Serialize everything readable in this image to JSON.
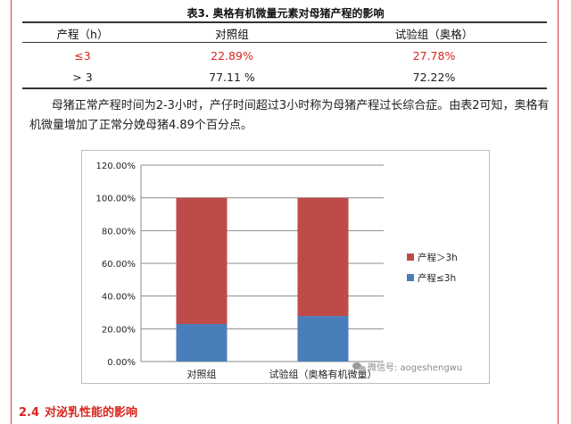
{
  "table": {
    "title": "表3. 奥格有机微量元素对母猪产程的影响",
    "headers": [
      "产程（h）",
      "对照组",
      "试验组（奥格）"
    ],
    "rows": [
      {
        "label": "≤3",
        "control": "22.89%",
        "test": "27.78%"
      },
      {
        "label": "> 3",
        "control": "77.11 %",
        "test": "72.22%"
      }
    ]
  },
  "paragraph": "母猪正常产程时间为2-3小时，产仔时间超过3小时称为母猪产程过长综合症。由表2可知，奥格有机微量增加了正常分娩母猪4.89个百分点。",
  "chart_data": {
    "type": "bar",
    "stacked": true,
    "categories": [
      "对照组",
      "试验组（奥格有机微量）"
    ],
    "series": [
      {
        "name": "产程≤3h",
        "values": [
          22.89,
          27.78
        ],
        "color": "#4a7ebb"
      },
      {
        "name": "产程＞3h",
        "values": [
          77.11,
          72.22
        ],
        "color": "#be4b48"
      }
    ],
    "ylim": [
      0,
      120
    ],
    "yticks": [
      "0.00%",
      "20.00%",
      "40.00%",
      "60.00%",
      "80.00%",
      "100.00%",
      "120.00%"
    ],
    "legend_position": "right",
    "grid": true
  },
  "watermark": {
    "text": "微信号: aogeshengwu",
    "icon": "wechat-icon"
  },
  "section": {
    "number": "2.4",
    "title": "对泌乳性能的影响"
  }
}
